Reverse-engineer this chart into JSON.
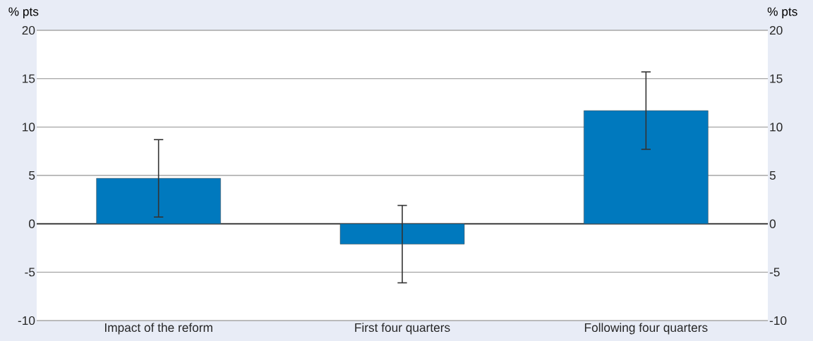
{
  "chart_data": {
    "type": "bar",
    "ylabel": "% pts",
    "y2label": "% pts",
    "categories": [
      "Impact of the reform",
      "First four quarters",
      "Following four quarters"
    ],
    "values": [
      4.7,
      -2.1,
      11.7
    ],
    "errors": [
      4,
      4,
      4
    ],
    "color": "#0079be",
    "ylim": [
      -10,
      20
    ],
    "yticks": [
      -10,
      -5,
      0,
      5,
      10,
      15,
      20
    ],
    "y2lim": [
      -10,
      20
    ],
    "y2ticks": [
      -10,
      -5,
      0,
      5,
      10,
      15,
      20
    ],
    "grid": "y"
  }
}
